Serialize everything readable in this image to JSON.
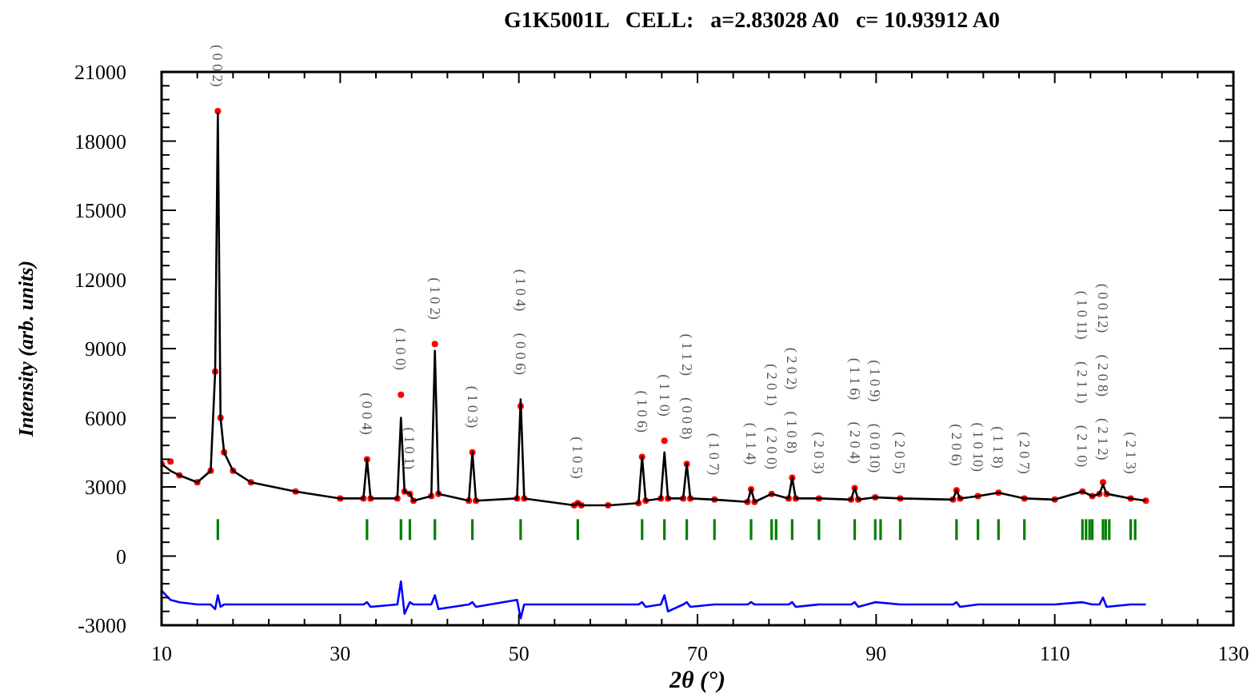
{
  "chart_data": {
    "type": "line",
    "title": "G1K5001L   CELL:   a=2.83028 A0   c= 10.93912 A0",
    "xlabel": "2θ (°)",
    "ylabel": "Intensity (arb. units)",
    "xlim": [
      10,
      130
    ],
    "ylim": [
      -3000,
      21000
    ],
    "xticks": [
      10,
      {
        "value": 14,
        "label": null
      },
      {
        "value": 18,
        "label": null
      },
      {
        "value": 22,
        "label": null
      },
      {
        "value": 26,
        "label": null
      },
      30,
      {
        "value": 34,
        "label": null
      },
      {
        "value": 38,
        "label": null
      },
      {
        "value": 42,
        "label": null
      },
      {
        "value": 46,
        "label": null
      },
      50,
      {
        "value": 54,
        "label": null
      },
      {
        "value": 58,
        "label": null
      },
      {
        "value": 62,
        "label": null
      },
      {
        "value": 66,
        "label": null
      },
      70,
      {
        "value": 74,
        "label": null
      },
      {
        "value": 78,
        "label": null
      },
      {
        "value": 82,
        "label": null
      },
      {
        "value": 86,
        "label": null
      },
      90,
      {
        "value": 94,
        "label": null
      },
      {
        "value": 98,
        "label": null
      },
      {
        "value": 102,
        "label": null
      },
      {
        "value": 106,
        "label": null
      },
      110,
      {
        "value": 114,
        "label": null
      },
      {
        "value": 118,
        "label": null
      },
      {
        "value": 122,
        "label": null
      },
      {
        "value": 126,
        "label": null
      },
      130
    ],
    "yticks": [
      -3000,
      {
        "value": -2400,
        "label": null
      },
      {
        "value": -1800,
        "label": null
      },
      {
        "value": -1200,
        "label": null
      },
      {
        "value": -600,
        "label": null
      },
      0,
      {
        "value": 600,
        "label": null
      },
      {
        "value": 1200,
        "label": null
      },
      {
        "value": 1800,
        "label": null
      },
      {
        "value": 2400,
        "label": null
      },
      3000,
      {
        "value": 3600,
        "label": null
      },
      {
        "value": 4200,
        "label": null
      },
      {
        "value": 4800,
        "label": null
      },
      {
        "value": 5400,
        "label": null
      },
      6000,
      {
        "value": 6600,
        "label": null
      },
      {
        "value": 7200,
        "label": null
      },
      {
        "value": 7800,
        "label": null
      },
      {
        "value": 8400,
        "label": null
      },
      9000,
      {
        "value": 9600,
        "label": null
      },
      {
        "value": 10200,
        "label": null
      },
      {
        "value": 10800,
        "label": null
      },
      {
        "value": 11400,
        "label": null
      },
      12000,
      {
        "value": 12600,
        "label": null
      },
      {
        "value": 13200,
        "label": null
      },
      {
        "value": 13800,
        "label": null
      },
      {
        "value": 14400,
        "label": null
      },
      15000,
      {
        "value": 15600,
        "label": null
      },
      {
        "value": 16200,
        "label": null
      },
      {
        "value": 16800,
        "label": null
      },
      {
        "value": 17400,
        "label": null
      },
      18000,
      {
        "value": 18600,
        "label": null
      },
      {
        "value": 19200,
        "label": null
      },
      {
        "value": 19800,
        "label": null
      },
      {
        "value": 20400,
        "label": null
      },
      21000
    ],
    "x": [
      10,
      11,
      12,
      14,
      15.5,
      16.0,
      16.3,
      16.6,
      17,
      18,
      20,
      25,
      30,
      32.6,
      33.0,
      33.4,
      36.4,
      36.8,
      37.2,
      37.8,
      38.2,
      40.2,
      40.6,
      41.0,
      44.4,
      44.8,
      45.2,
      49.8,
      50.2,
      50.6,
      56.2,
      56.6,
      57,
      60,
      63.4,
      63.8,
      64.2,
      65.9,
      66.3,
      66.7,
      68.4,
      68.8,
      69.2,
      71.9,
      75.6,
      76.0,
      76.4,
      78.3,
      80.2,
      80.6,
      81.0,
      83.6,
      87.2,
      87.6,
      88.0,
      89.9,
      92.7,
      98.6,
      99.0,
      99.4,
      101.4,
      103.7,
      106.6,
      110,
      113.1,
      114.2,
      115.0,
      115.4,
      115.8,
      118.5,
      120.2
    ],
    "series": [
      {
        "type": "scatter",
        "marker": "circle",
        "color": "#ff0000",
        "values": [
          4000,
          4100,
          3500,
          3200,
          3700,
          8000,
          19300,
          6000,
          4500,
          3700,
          3200,
          2800,
          2500,
          2500,
          4200,
          2500,
          2500,
          7000,
          2800,
          2700,
          2400,
          2600,
          9200,
          2700,
          2400,
          4500,
          2400,
          2500,
          6500,
          2500,
          2200,
          2300,
          2200,
          2200,
          2300,
          4300,
          2400,
          2500,
          5000,
          2500,
          2500,
          4000,
          2500,
          2450,
          2350,
          2900,
          2350,
          2700,
          2500,
          3400,
          2500,
          2500,
          2450,
          2950,
          2450,
          2550,
          2500,
          2450,
          2850,
          2500,
          2600,
          2750,
          2500,
          2450,
          2800,
          2600,
          2700,
          3200,
          2700,
          2500,
          2400
        ]
      },
      {
        "color": "#000000",
        "values": [
          4000,
          3700,
          3500,
          3200,
          3700,
          8000,
          19200,
          6000,
          4500,
          3700,
          3200,
          2800,
          2500,
          2500,
          4200,
          2500,
          2500,
          6000,
          2800,
          2700,
          2400,
          2600,
          8900,
          2700,
          2400,
          4500,
          2400,
          2500,
          6800,
          2500,
          2200,
          2300,
          2200,
          2200,
          2300,
          4300,
          2400,
          2500,
          4500,
          2500,
          2500,
          4000,
          2500,
          2450,
          2350,
          2900,
          2350,
          2700,
          2500,
          3400,
          2500,
          2500,
          2450,
          2950,
          2450,
          2550,
          2500,
          2450,
          2850,
          2500,
          2600,
          2750,
          2500,
          2450,
          2800,
          2600,
          2700,
          3100,
          2700,
          2500,
          2400
        ]
      },
      {
        "color": "#0000ff",
        "values": [
          -1500,
          -1900,
          -2000,
          -2100,
          -2100,
          -2300,
          -1700,
          -2200,
          -2100,
          -2100,
          -2100,
          -2100,
          -2100,
          -2100,
          -2000,
          -2200,
          -2100,
          -1100,
          -2500,
          -2000,
          -2100,
          -2100,
          -1700,
          -2300,
          -2100,
          -2000,
          -2200,
          -1900,
          -2700,
          -2100,
          -2100,
          -2100,
          -2100,
          -2100,
          -2100,
          -2000,
          -2200,
          -2100,
          -1700,
          -2400,
          -2100,
          -2000,
          -2200,
          -2100,
          -2100,
          -2000,
          -2100,
          -2100,
          -2100,
          -2000,
          -2200,
          -2100,
          -2100,
          -2000,
          -2200,
          -2000,
          -2100,
          -2100,
          -2000,
          -2200,
          -2100,
          -2100,
          -2100,
          -2100,
          -2000,
          -2100,
          -2100,
          -1800,
          -2200,
          -2100,
          -2100
        ]
      },
      {
        "type": "bar",
        "color": "#008000",
        "base": [
          700,
          700,
          700,
          700,
          700,
          700,
          700,
          700,
          700,
          700,
          700,
          700,
          700,
          700,
          700,
          700,
          700,
          700,
          700,
          700,
          700,
          700,
          700,
          700,
          700,
          700,
          700,
          700,
          700,
          700,
          700,
          700,
          700,
          700
        ],
        "x": [
          16.3,
          33.0,
          36.8,
          37.8,
          40.6,
          44.8,
          50.2,
          56.6,
          63.8,
          66.3,
          68.8,
          71.9,
          76.0,
          78.3,
          78.8,
          80.6,
          83.6,
          87.6,
          89.9,
          90.5,
          92.7,
          99.0,
          101.4,
          103.7,
          106.6,
          113.1,
          113.5,
          113.9,
          114.2,
          115.4,
          115.7,
          116.1,
          118.5,
          119.0
        ],
        "values": [
          900,
          900,
          900,
          900,
          900,
          900,
          900,
          900,
          900,
          900,
          900,
          900,
          900,
          900,
          900,
          900,
          900,
          900,
          900,
          900,
          900,
          900,
          900,
          900,
          900,
          900,
          900,
          900,
          900,
          900,
          900,
          900,
          900,
          900
        ]
      }
    ],
    "annotations": [
      {
        "text": "( 0 0 2)",
        "x": 16.3,
        "y": 19300
      },
      {
        "text": "( 0 0 4)",
        "x": 33.0,
        "y": 4200
      },
      {
        "text": "( 1 0 0)",
        "x": 36.8,
        "y": 7000
      },
      {
        "text": "( 1 0 1)",
        "x": 37.8,
        "y": 2700
      },
      {
        "text": "( 1 0 2)",
        "x": 40.6,
        "y": 9200
      },
      {
        "text": "( 1 0 3)",
        "x": 44.8,
        "y": 4500
      },
      {
        "text": "( 0 0 6)",
        "x": 50.2,
        "y": 6800
      },
      "( 1 0 4)",
      {
        "text": "( 1 0 5)",
        "x": 56.6,
        "y": 2300
      },
      {
        "text": "( 1 0 6)",
        "x": 63.8,
        "y": 4300
      },
      {
        "text": "( 1 1 0)",
        "x": 66.3,
        "y": 5000
      },
      {
        "text": "( 0 0 8)",
        "x": 68.8,
        "y": 4000
      },
      "( 1 1 2)",
      {
        "text": "( 1 0 7)",
        "x": 71.9,
        "y": 2450
      },
      {
        "text": "( 1 1 4)",
        "x": 76.0,
        "y": 2900
      },
      {
        "text": "( 2 0 0)",
        "x": 78.3,
        "y": 2700
      },
      "( 2 0 1)",
      {
        "text": "( 1 0 8)",
        "x": 80.6,
        "y": 3400
      },
      "( 2 0 2)",
      {
        "text": "( 2 0 3)",
        "x": 83.6,
        "y": 2500
      },
      {
        "text": "( 2 0 4)",
        "x": 87.6,
        "y": 2950
      },
      "( 1 1 6)",
      {
        "text": "( 0 0 10)",
        "x": 89.9,
        "y": 2550
      },
      "( 1 0 9)",
      {
        "text": "( 2 0 5)",
        "x": 92.7,
        "y": 2500
      },
      {
        "text": "( 2 0 6)",
        "x": 99.0,
        "y": 2850
      },
      {
        "text": "( 1 0 10)",
        "x": 101.4,
        "y": 2600
      },
      {
        "text": "( 1 1 8)",
        "x": 103.7,
        "y": 2750
      },
      {
        "text": "( 2 0 7)",
        "x": 106.6,
        "y": 2500
      },
      {
        "text": "( 2 1 0)",
        "x": 113.1,
        "y": 2800
      },
      "( 2 1 1)",
      "( 1 0 11)",
      {
        "text": "( 2 1 2)",
        "x": 115.4,
        "y": 3100
      },
      "( 2 0 8)",
      "( 0 0 12)",
      {
        "text": "( 2 1 3)",
        "x": 118.5,
        "y": 2500
      }
    ]
  }
}
